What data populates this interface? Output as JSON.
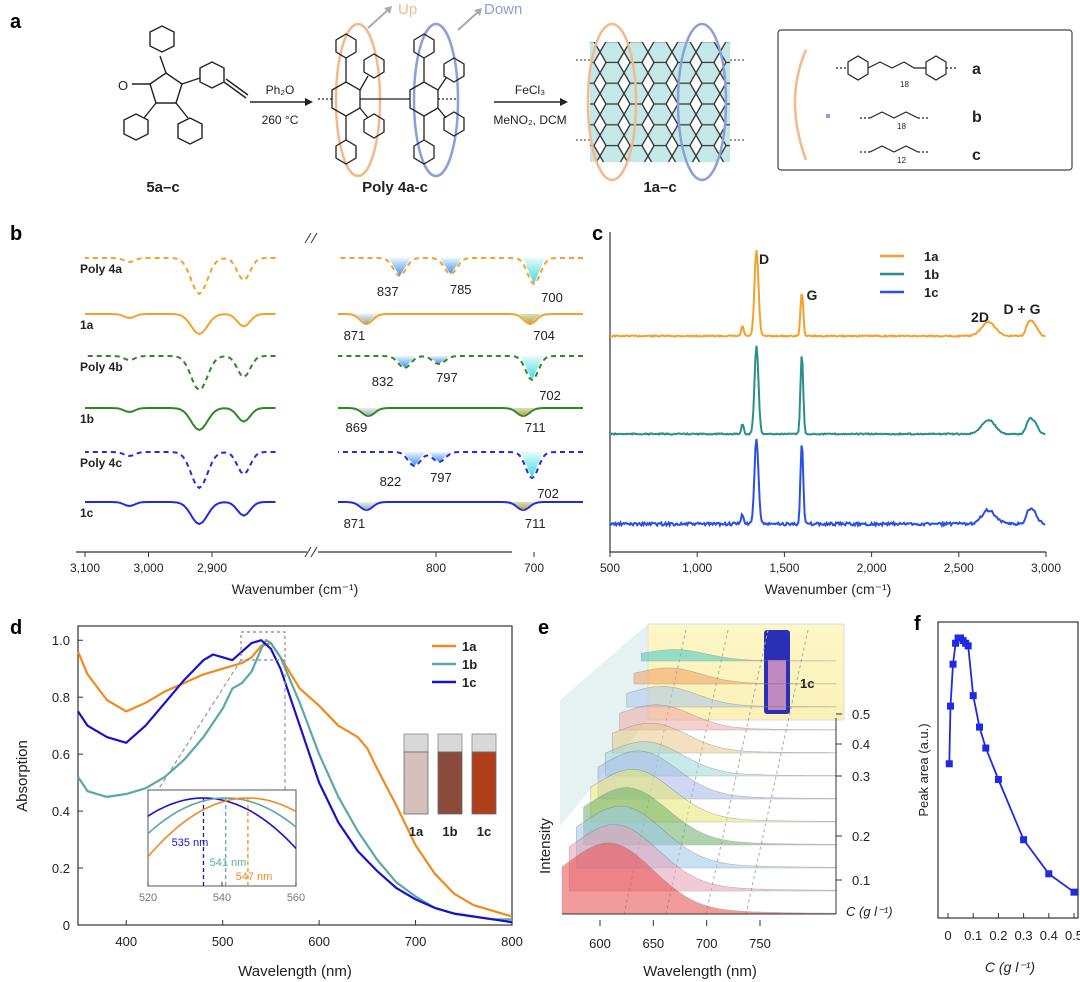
{
  "panels": {
    "a": {
      "letter": "a",
      "labels": {
        "reactant": "5a–c",
        "polymer": "Poly 4a-c",
        "product": "1a–c",
        "step1_reagent": "Ph₂O",
        "step1_condition": "260 °C",
        "step2_reagent": "FeCl₃",
        "step2_condition": "MeNO₂, DCM",
        "up": "Up",
        "down": "Down",
        "ketone": "O",
        "chain_n1": "18",
        "chain_n2": "18",
        "chain_n3": "12",
        "legend_a": "a",
        "legend_b": "b",
        "legend_c": "c"
      }
    },
    "b": {
      "letter": "b"
    },
    "c": {
      "letter": "c"
    },
    "d": {
      "letter": "d"
    },
    "e": {
      "letter": "e"
    },
    "f": {
      "letter": "f"
    }
  },
  "colors": {
    "orange": "#f5a02a",
    "green": "#2a8a1e",
    "blue": "#1f2be0",
    "teal": "#2a8f8a",
    "raman_blue": "#2a4fe6",
    "uv_orange": "#f08a1e",
    "uv_teal": "#5aa8a8",
    "uv_blue": "#1a12c8",
    "up_color": "#f4b98a",
    "down_color": "#8aa0d8"
  },
  "chart_data": [
    {
      "panel": "b",
      "type": "line",
      "xlabel": "Wavenumber (cm⁻¹)",
      "x_ticks": [
        "3,100",
        "3,000",
        "2,900",
        "800",
        "700"
      ],
      "x_tick_values": [
        3100,
        3000,
        2900,
        800,
        700
      ],
      "axis_break": [
        2800,
        900
      ],
      "series": [
        {
          "name": "Poly 4a",
          "style": "dashed",
          "color": "orange",
          "peaks": [
            "837",
            "785",
            "700"
          ]
        },
        {
          "name": "1a",
          "style": "solid",
          "color": "orange",
          "peaks": [
            "871",
            "704"
          ]
        },
        {
          "name": "Poly 4b",
          "style": "dashed",
          "color": "green",
          "peaks": [
            "832",
            "797",
            "702"
          ]
        },
        {
          "name": "1b",
          "style": "solid",
          "color": "green",
          "peaks": [
            "869",
            "711"
          ]
        },
        {
          "name": "Poly 4c",
          "style": "dashed",
          "color": "blue",
          "peaks": [
            "822",
            "797",
            "702"
          ]
        },
        {
          "name": "1c",
          "style": "solid",
          "color": "blue",
          "peaks": [
            "871",
            "711"
          ]
        }
      ]
    },
    {
      "panel": "c",
      "type": "line",
      "xlabel": "Wavenumber (cm⁻¹)",
      "x_ticks": [
        "500",
        "1,000",
        "1,500",
        "2,000",
        "2,500",
        "3,000"
      ],
      "x_tick_values": [
        500,
        1000,
        1500,
        2000,
        2500,
        3000
      ],
      "xlim": [
        500,
        3000
      ],
      "band_labels": [
        "D",
        "G",
        "2D",
        "D + G"
      ],
      "band_positions": [
        1340,
        1600,
        2670,
        2930
      ],
      "legend": [
        "1a",
        "1b",
        "1c"
      ],
      "series": [
        {
          "name": "1a",
          "color": "orange"
        },
        {
          "name": "1b",
          "color": "teal"
        },
        {
          "name": "1c",
          "color": "raman_blue"
        }
      ]
    },
    {
      "panel": "d",
      "type": "line",
      "xlabel": "Wavelength (nm)",
      "ylabel": "Absorption",
      "xlim": [
        350,
        800
      ],
      "ylim": [
        0,
        1.05
      ],
      "x_ticks": [
        "400",
        "500",
        "600",
        "700",
        "800"
      ],
      "x_tick_values": [
        400,
        500,
        600,
        700,
        800
      ],
      "y_ticks": [
        "0",
        "0.2",
        "0.4",
        "0.6",
        "0.8",
        "1.0"
      ],
      "y_tick_values": [
        0,
        0.2,
        0.4,
        0.6,
        0.8,
        1.0
      ],
      "legend": [
        "1a",
        "1b",
        "1c"
      ],
      "series": [
        {
          "name": "1a",
          "color": "uv_orange",
          "x": [
            350,
            360,
            380,
            400,
            420,
            440,
            460,
            480,
            500,
            520,
            530,
            540,
            550,
            560,
            580,
            600,
            620,
            640,
            650,
            660,
            680,
            700,
            720,
            740,
            760,
            780,
            800
          ],
          "y": [
            0.96,
            0.88,
            0.79,
            0.75,
            0.78,
            0.82,
            0.85,
            0.88,
            0.9,
            0.92,
            0.94,
            0.98,
            0.99,
            0.94,
            0.83,
            0.77,
            0.7,
            0.66,
            0.62,
            0.55,
            0.42,
            0.28,
            0.18,
            0.11,
            0.07,
            0.05,
            0.03
          ]
        },
        {
          "name": "1b",
          "color": "uv_teal",
          "x": [
            350,
            360,
            380,
            400,
            420,
            440,
            460,
            480,
            500,
            510,
            520,
            530,
            540,
            545,
            550,
            560,
            580,
            600,
            620,
            640,
            660,
            680,
            700,
            720,
            740,
            760,
            780,
            800
          ],
          "y": [
            0.52,
            0.47,
            0.45,
            0.46,
            0.48,
            0.52,
            0.58,
            0.66,
            0.76,
            0.83,
            0.85,
            0.89,
            0.97,
            1.0,
            0.99,
            0.94,
            0.78,
            0.6,
            0.45,
            0.33,
            0.23,
            0.15,
            0.1,
            0.06,
            0.04,
            0.03,
            0.02,
            0.02
          ]
        },
        {
          "name": "1c",
          "color": "uv_blue",
          "x": [
            350,
            360,
            380,
            400,
            420,
            440,
            460,
            480,
            490,
            500,
            510,
            520,
            530,
            540,
            550,
            560,
            580,
            600,
            620,
            640,
            660,
            680,
            700,
            720,
            740,
            760,
            780,
            800
          ],
          "y": [
            0.75,
            0.7,
            0.66,
            0.64,
            0.7,
            0.78,
            0.86,
            0.93,
            0.95,
            0.94,
            0.93,
            0.96,
            0.99,
            1.0,
            0.97,
            0.9,
            0.7,
            0.5,
            0.36,
            0.26,
            0.19,
            0.13,
            0.09,
            0.06,
            0.04,
            0.03,
            0.02,
            0.01
          ]
        }
      ],
      "inset": {
        "xlim": [
          520,
          560
        ],
        "x_ticks": [
          "520",
          "540",
          "560"
        ],
        "x_tick_values": [
          520,
          540,
          560
        ],
        "peaks": [
          {
            "label": "535 nm",
            "x": 535,
            "color": "uv_blue"
          },
          {
            "label": "541 nm",
            "x": 541,
            "color": "uv_teal"
          },
          {
            "label": "547 nm",
            "x": 547,
            "color": "uv_orange"
          }
        ]
      },
      "vial_labels": [
        "1a",
        "1b",
        "1c"
      ]
    },
    {
      "panel": "e",
      "type": "area",
      "xlabel": "Wavelength (nm)",
      "ylabel": "Intensity",
      "zlabel": "C (g l⁻¹)",
      "x_ticks": [
        "600",
        "650",
        "700",
        "750"
      ],
      "x_tick_values": [
        600,
        650,
        700,
        750
      ],
      "z_ticks": [
        "0.1",
        "0.2",
        "0.3",
        "0.4",
        "0.5"
      ],
      "z_tick_values": [
        0.1,
        0.2,
        0.3,
        0.4,
        0.5
      ],
      "photo_label": "1c",
      "layer_colors": [
        "#e84a4a",
        "#e8a0b8",
        "#9ac8e8",
        "#6ab06a",
        "#e8e870",
        "#a8b8e8",
        "#9ad8d8",
        "#e8c88a",
        "#f0a8a8",
        "#a8c8f0",
        "#f0a060",
        "#40c8c8"
      ]
    },
    {
      "panel": "f",
      "type": "scatter",
      "xlabel": "C (g l⁻¹)",
      "ylabel": "Peak area (a.u.)",
      "xlim": [
        0,
        0.5
      ],
      "x_ticks": [
        "0",
        "0.1",
        "0.2",
        "0.3",
        "0.4",
        "0.5"
      ],
      "x_tick_values": [
        0,
        0.1,
        0.2,
        0.3,
        0.4,
        0.5
      ],
      "series": [
        {
          "name": "",
          "color": "blue",
          "x": [
            0.005,
            0.01,
            0.02,
            0.03,
            0.04,
            0.05,
            0.06,
            0.07,
            0.08,
            0.1,
            0.125,
            0.15,
            0.2,
            0.3,
            0.4,
            0.5
          ],
          "y": [
            0.52,
            0.74,
            0.9,
            0.98,
            1.0,
            1.0,
            0.99,
            0.98,
            0.97,
            0.78,
            0.66,
            0.58,
            0.46,
            0.23,
            0.1,
            0.03
          ]
        }
      ]
    }
  ]
}
